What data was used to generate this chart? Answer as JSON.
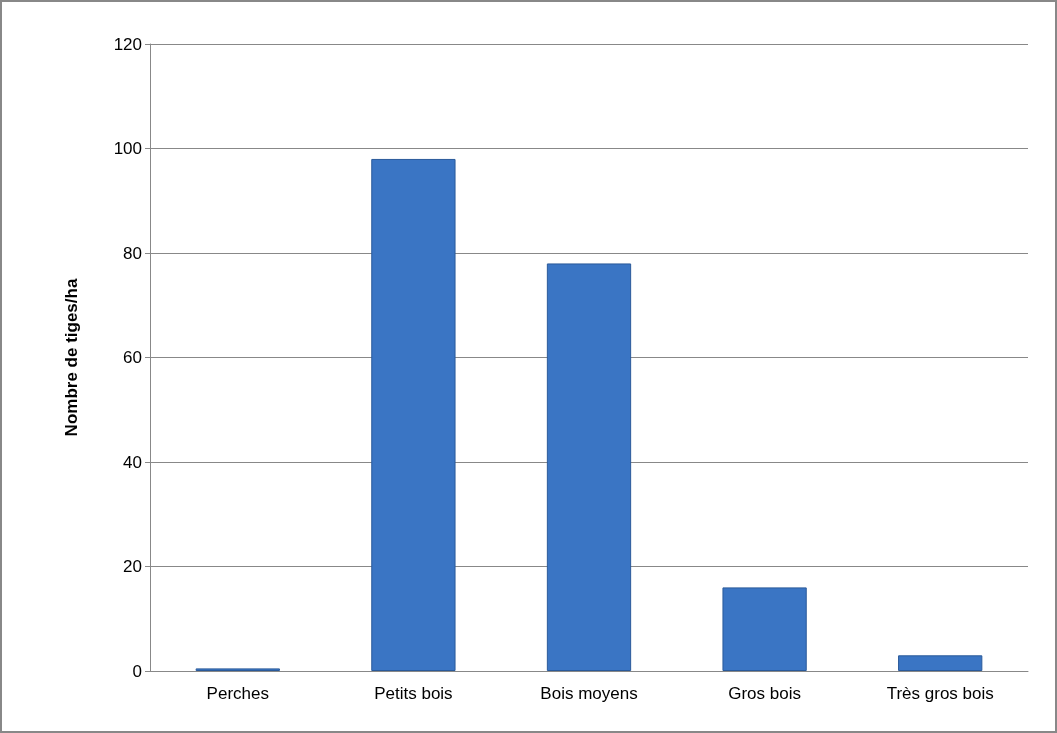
{
  "chart_data": {
    "type": "bar",
    "ylabel": "Nombre de tiges/ha",
    "categories": [
      "Perches",
      "Petits bois",
      "Bois moyens",
      "Gros bois",
      "Très gros bois"
    ],
    "values": [
      0.5,
      98,
      78,
      16,
      3
    ],
    "color": "#3a75c4",
    "ylim": [
      0,
      120
    ],
    "yticks": [
      0,
      20,
      40,
      60,
      80,
      100,
      120
    ],
    "grid": "y"
  }
}
